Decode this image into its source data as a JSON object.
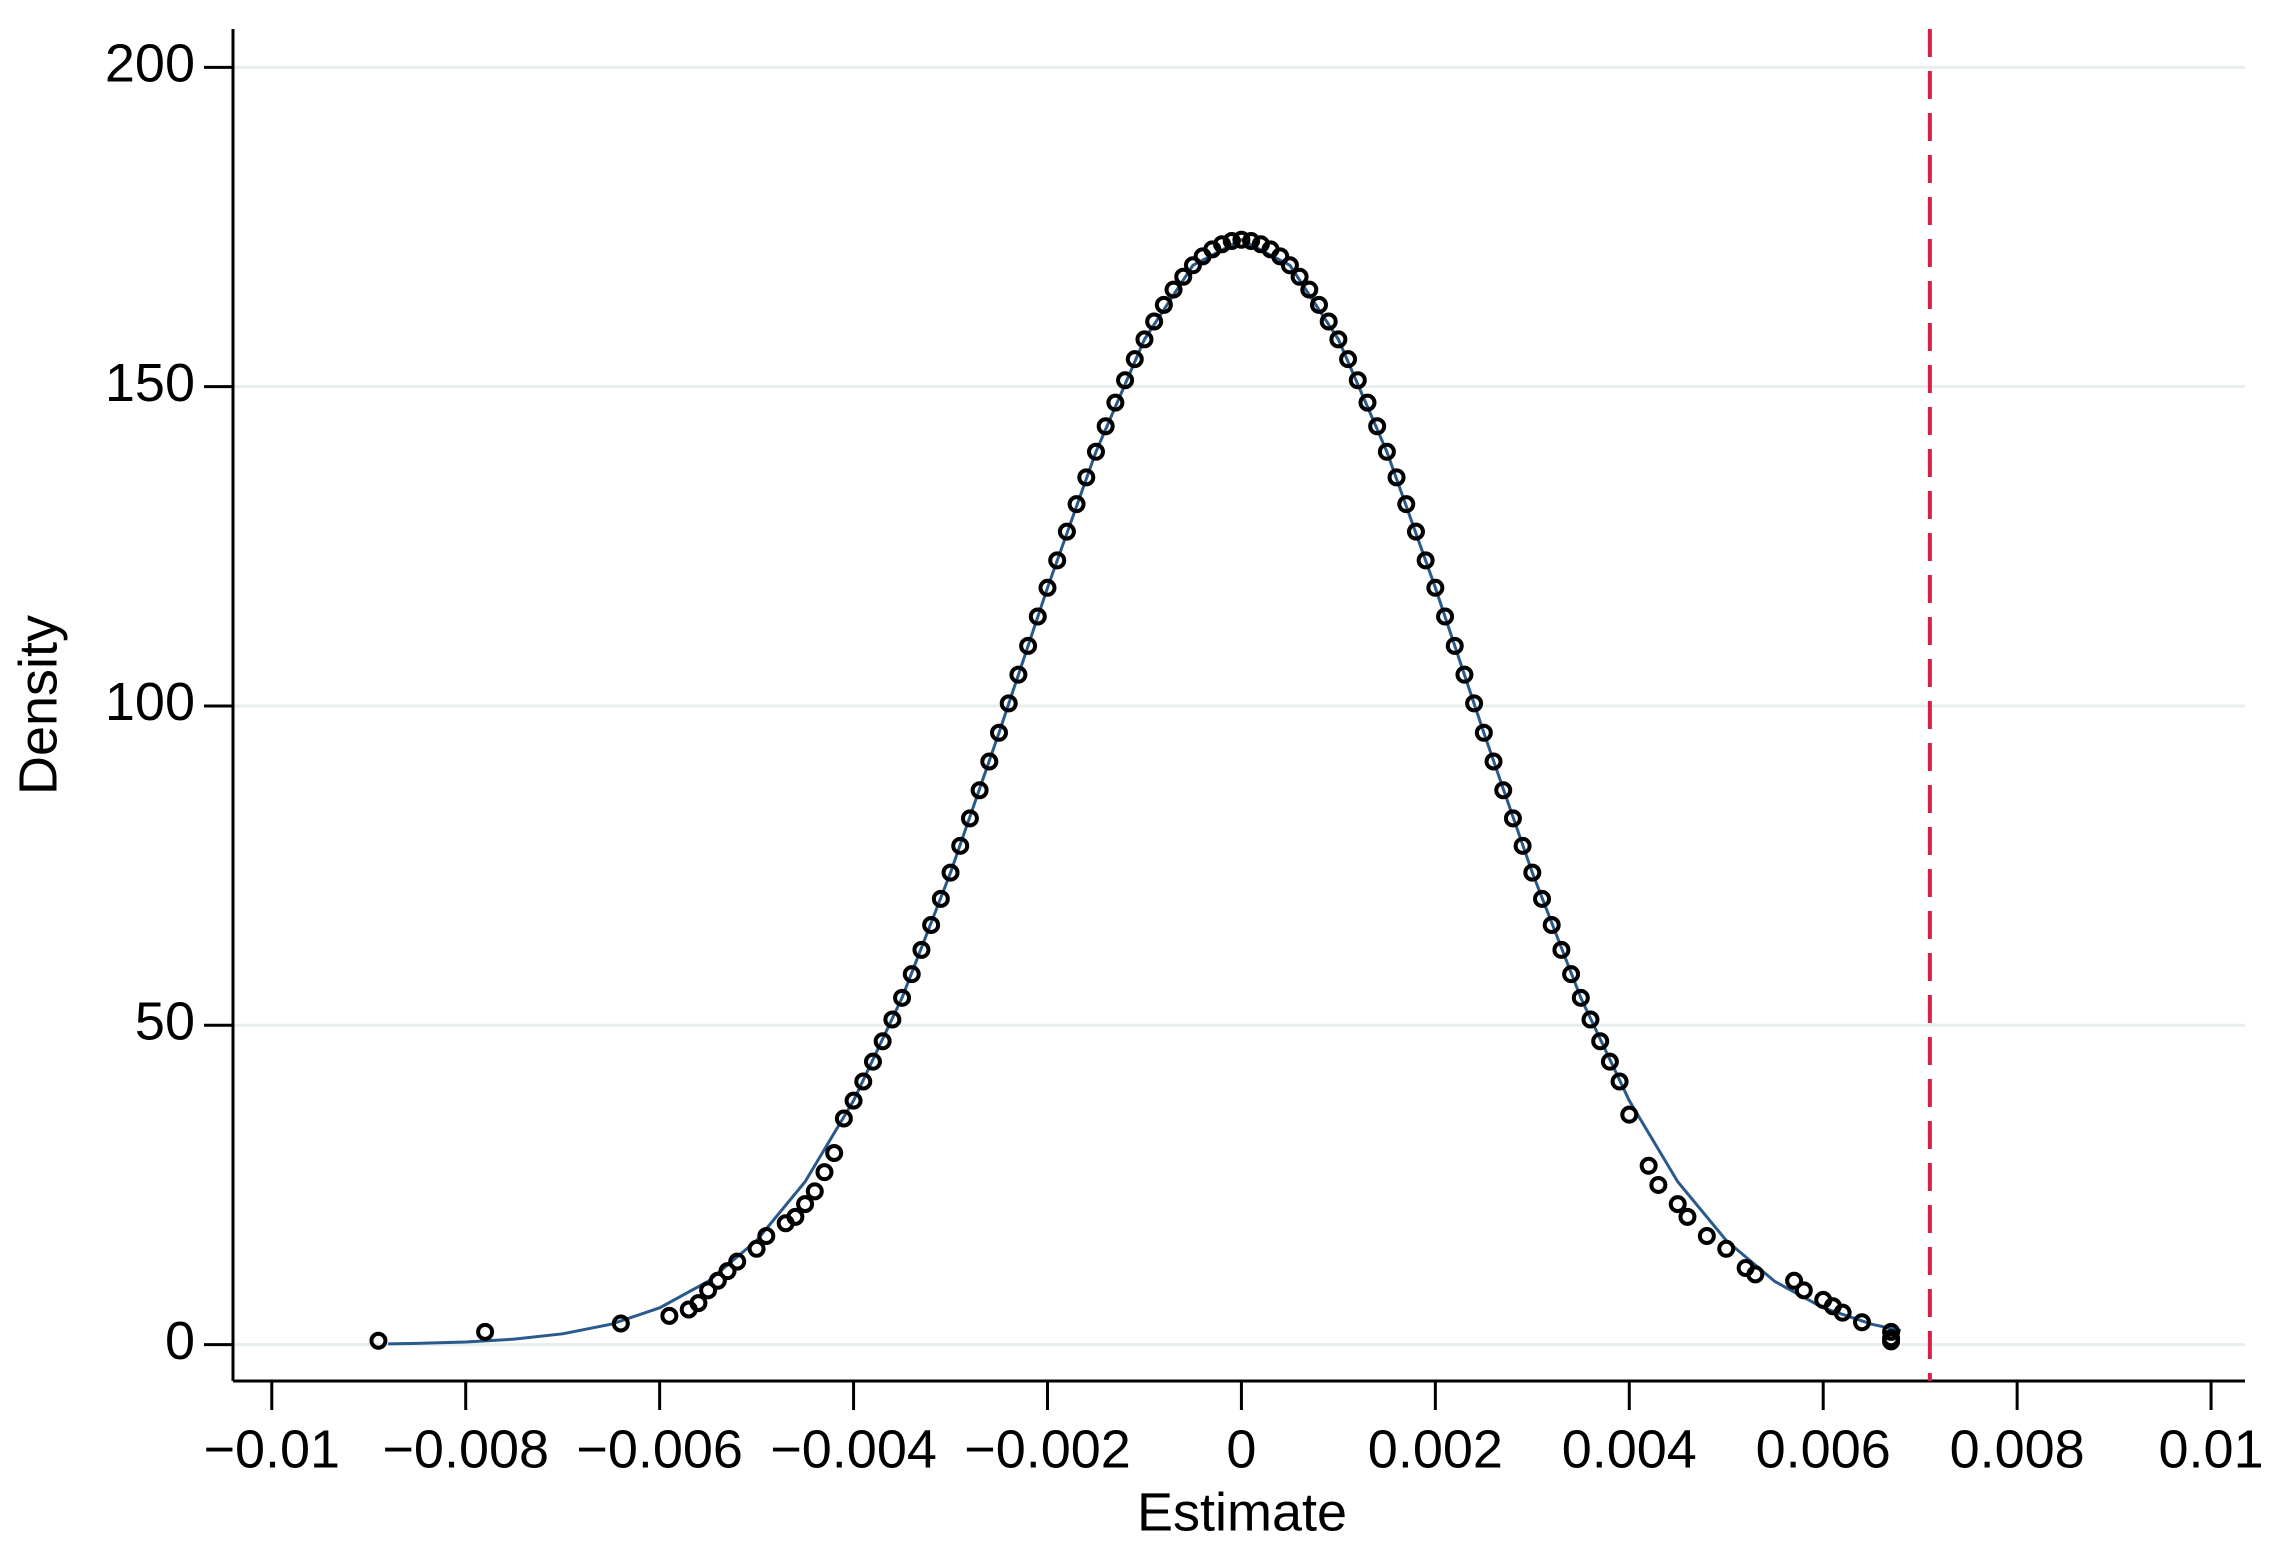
{
  "chart_data": {
    "type": "scatter",
    "xlabel": "Estimate",
    "ylabel": "Density",
    "xlim": [
      -0.0104,
      0.01035
    ],
    "ylim": [
      -5.7,
      206
    ],
    "xticks": [
      {
        "value": -0.01,
        "label": "−0.01"
      },
      {
        "value": -0.008,
        "label": "−0.008"
      },
      {
        "value": -0.006,
        "label": "−0.006"
      },
      {
        "value": -0.004,
        "label": "−0.004"
      },
      {
        "value": -0.002,
        "label": "−0.002"
      },
      0,
      0.002,
      0.004,
      0.006,
      0.008,
      0.01
    ],
    "yticks": [
      0,
      50,
      100,
      150,
      200
    ],
    "grid": true,
    "points": {
      "color": "#000000",
      "x": [
        -0.0089,
        -0.0078,
        -0.0064,
        -0.0059,
        -0.0057,
        -0.0056,
        -0.0055,
        -0.0054,
        -0.0053,
        -0.0052,
        -0.005,
        -0.0049,
        -0.0047,
        -0.0046,
        -0.0045,
        -0.0044,
        -0.0043,
        -0.0042,
        -0.0041,
        -0.004,
        -0.0039,
        -0.0038,
        -0.0037,
        -0.0036,
        -0.0035,
        -0.0034,
        -0.0033,
        -0.0032,
        -0.0031,
        -0.003,
        -0.0029,
        -0.0028,
        -0.0027,
        -0.0026,
        -0.0025,
        -0.0024,
        -0.0023,
        -0.0022,
        -0.0021,
        -0.002,
        -0.0019,
        -0.0018,
        -0.0017,
        -0.0016,
        -0.0015,
        -0.0014,
        -0.0013,
        -0.0012,
        -0.0011,
        -0.001,
        -0.0009,
        -0.0008,
        -0.0007,
        -0.0006,
        -0.0005,
        -0.0004,
        -0.0003,
        -0.0002,
        -0.0001,
        0,
        0.0001,
        0.0002,
        0.0003,
        0.0004,
        0.0005,
        0.0006,
        0.0007,
        0.0008,
        0.0009,
        0.001,
        0.0011,
        0.0012,
        0.0013,
        0.0014,
        0.0015,
        0.0016,
        0.0017,
        0.0018,
        0.0019,
        0.002,
        0.0021,
        0.0022,
        0.0023,
        0.0024,
        0.0025,
        0.0026,
        0.0027,
        0.0028,
        0.0029,
        0.003,
        0.0031,
        0.0032,
        0.0033,
        0.0034,
        0.0035,
        0.0036,
        0.0037,
        0.0038,
        0.0039,
        0.004,
        0.0042,
        0.0043,
        0.0045,
        0.0046,
        0.0048,
        0.005,
        0.0052,
        0.0053,
        0.0057,
        0.0058,
        0.006,
        0.0061,
        0.0062,
        0.0064,
        0.0067,
        0.0067,
        0.0067
      ],
      "values": [
        0.6,
        2.0,
        3.3,
        4.5,
        5.5,
        6.5,
        8.5,
        10,
        11.5,
        13,
        15,
        17,
        19,
        20,
        22,
        24,
        27,
        30,
        35.4,
        38.2,
        41.2,
        44.3,
        47.5,
        50.9,
        54.3,
        58.0,
        61.8,
        65.7,
        69.8,
        73.9,
        78.1,
        82.4,
        86.8,
        91.3,
        95.8,
        100.4,
        104.9,
        109.4,
        114.0,
        118.5,
        122.8,
        127.3,
        131.6,
        135.8,
        139.8,
        143.8,
        147.5,
        151.0,
        154.3,
        157.4,
        160.2,
        162.8,
        165.2,
        167.2,
        169.0,
        170.4,
        171.5,
        172.3,
        172.8,
        173,
        172.8,
        172.3,
        171.5,
        170.4,
        169.0,
        167.2,
        165.2,
        162.8,
        160.2,
        157.4,
        154.3,
        151.0,
        147.5,
        143.8,
        139.8,
        135.8,
        131.6,
        127.3,
        122.8,
        118.5,
        114.0,
        109.4,
        104.9,
        100.4,
        95.8,
        91.3,
        86.8,
        82.4,
        78.1,
        73.9,
        69.8,
        65.7,
        61.8,
        58.0,
        54.3,
        50.9,
        47.5,
        44.3,
        41.2,
        36,
        28,
        25,
        22,
        20,
        17,
        15,
        12,
        11,
        10,
        8.5,
        7,
        6,
        5,
        3.5,
        2,
        1,
        0.5
      ]
    },
    "curve": {
      "color": "#2a5a8c",
      "x": [
        -0.0088,
        -0.0085,
        -0.008,
        -0.0075,
        -0.007,
        -0.0065,
        -0.006,
        -0.0055,
        -0.005,
        -0.0045,
        -0.004,
        -0.0035,
        -0.003,
        -0.0025,
        -0.002,
        -0.0015,
        -0.001,
        -0.0005,
        0,
        0.0005,
        0.001,
        0.0015,
        0.002,
        0.0025,
        0.003,
        0.0035,
        0.004,
        0.0045,
        0.005,
        0.0055,
        0.006,
        0.0065,
        0.0068
      ],
      "values": [
        0.11,
        0.19,
        0.41,
        0.85,
        1.69,
        3.19,
        5.76,
        9.9,
        16.3,
        25.5,
        38.2,
        54.3,
        73.9,
        95.8,
        118.5,
        139.8,
        157.4,
        169.0,
        173,
        169.0,
        157.4,
        139.8,
        118.5,
        95.8,
        73.9,
        54.3,
        38.2,
        25.5,
        16.3,
        9.9,
        5.76,
        3.19,
        2.19
      ]
    },
    "xline": {
      "value": 0.0071,
      "color": "#d6204a"
    }
  }
}
